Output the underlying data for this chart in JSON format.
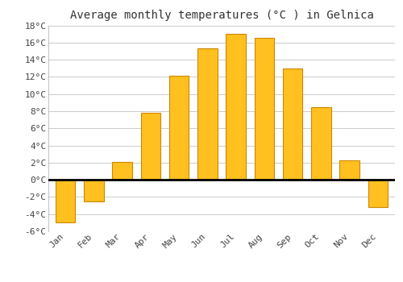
{
  "title": "Average monthly temperatures (°C ) in Gelnica",
  "months": [
    "Jan",
    "Feb",
    "Mar",
    "Apr",
    "May",
    "Jun",
    "Jul",
    "Aug",
    "Sep",
    "Oct",
    "Nov",
    "Dec"
  ],
  "values": [
    -5.0,
    -2.5,
    2.1,
    7.8,
    12.1,
    15.3,
    17.0,
    16.5,
    13.0,
    8.5,
    2.3,
    -3.2
  ],
  "bar_color": "#FFC020",
  "bar_edge_color": "#CC8800",
  "ylim": [
    -6,
    18
  ],
  "yticks": [
    -6,
    -4,
    -2,
    0,
    2,
    4,
    6,
    8,
    10,
    12,
    14,
    16,
    18
  ],
  "ytick_labels": [
    "-6°C",
    "-4°C",
    "-2°C",
    "0°C",
    "2°C",
    "4°C",
    "6°C",
    "8°C",
    "10°C",
    "12°C",
    "14°C",
    "16°C",
    "18°C"
  ],
  "background_color": "#ffffff",
  "grid_color": "#cccccc",
  "title_fontsize": 10,
  "tick_fontsize": 8,
  "bar_width": 0.7
}
